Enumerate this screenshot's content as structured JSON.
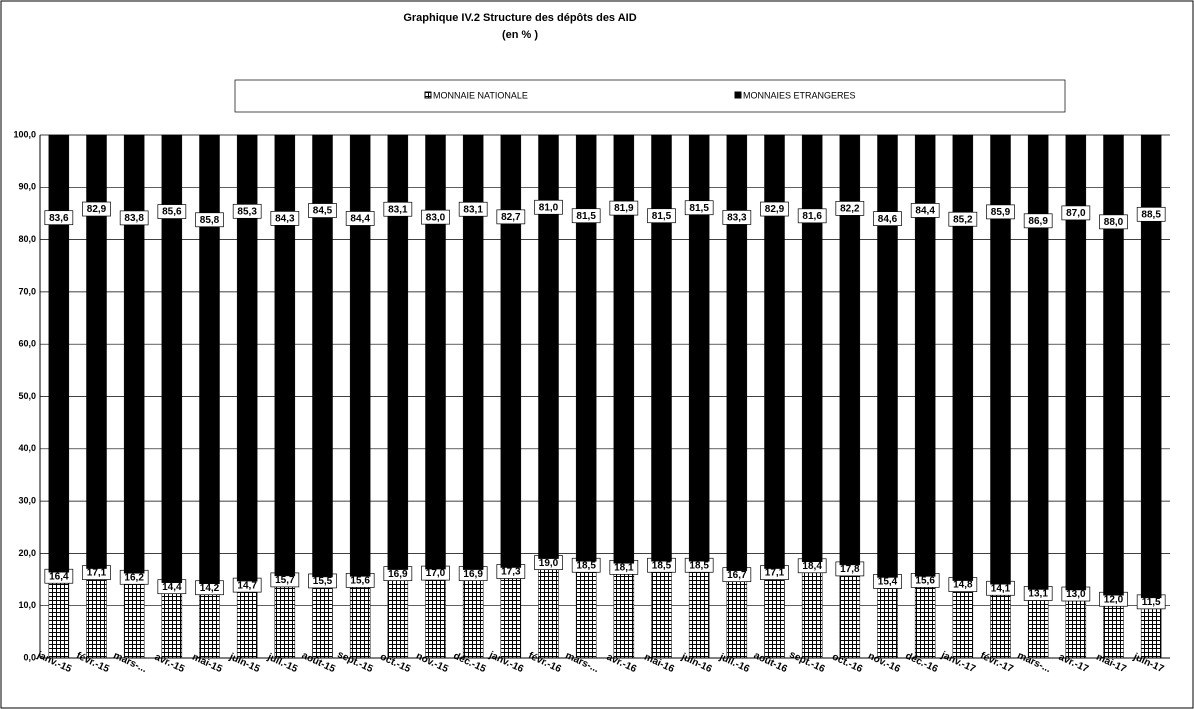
{
  "chart_data": {
    "type": "stacked_bar",
    "title": "Graphique IV.2  Structure des dépôts des AID",
    "subtitle": "(en % )",
    "categories": [
      "janv.-15",
      "févr.-15",
      "mars-...",
      "avr.-15",
      "mai-15",
      "juin-15",
      "juil.-15",
      "août-15",
      "sept.-15",
      "oct.-15",
      "nov.-15",
      "déc.-15",
      "janv.-16",
      "févr.-16",
      "mars-...",
      "avr.-16",
      "mai-16",
      "juin-16",
      "juil.-16",
      "août-16",
      "sept.-16",
      "oct.-16",
      "nov.-16",
      "déc.-16",
      "janv.-17",
      "févr.-17",
      "mars-...",
      "avr.-17",
      "mai-17",
      "juin-17"
    ],
    "series": [
      {
        "name": "MONNAIE NATIONALE",
        "color": "#ffffff",
        "values": [
          16.4,
          17.1,
          16.2,
          14.4,
          14.2,
          14.7,
          15.7,
          15.5,
          15.6,
          16.9,
          17.0,
          16.9,
          17.3,
          19.0,
          18.5,
          18.1,
          18.5,
          18.5,
          16.7,
          17.1,
          18.4,
          17.8,
          15.4,
          15.6,
          14.8,
          14.1,
          13.1,
          13.0,
          12.0,
          11.5
        ],
        "value_labels": [
          "16,4",
          "17,1",
          "16,2",
          "14,4",
          "14,2",
          "14,7",
          "15,7",
          "15,5",
          "15,6",
          "16,9",
          "17,0",
          "16,9",
          "17,3",
          "19,0",
          "18,5",
          "18,1",
          "18,5",
          "18,5",
          "16,7",
          "17,1",
          "18,4",
          "17,8",
          "15,4",
          "15,6",
          "14,8",
          "14,1",
          "13,1",
          "13,0",
          "12,0",
          "11,5"
        ]
      },
      {
        "name": "MONNAIES ETRANGERES",
        "color": "#000000",
        "values": [
          83.6,
          82.9,
          83.8,
          85.6,
          85.8,
          85.3,
          84.3,
          84.5,
          84.4,
          83.1,
          83.0,
          83.1,
          82.7,
          81.0,
          81.5,
          81.9,
          81.5,
          81.5,
          83.3,
          82.9,
          81.6,
          82.2,
          84.6,
          84.4,
          85.2,
          85.9,
          86.9,
          87.0,
          88.0,
          88.5
        ],
        "value_labels": [
          "83,6",
          "82,9",
          "83,8",
          "85,6",
          "85,8",
          "85,3",
          "84,3",
          "84,5",
          "84,4",
          "83,1",
          "83,0",
          "83,1",
          "82,7",
          "81,0",
          "81,5",
          "81,9",
          "81,5",
          "81,5",
          "83,3",
          "82,9",
          "81,6",
          "82,2",
          "84,6",
          "84,4",
          "85,2",
          "85,9",
          "86,9",
          "87,0",
          "88,0",
          "88,5"
        ]
      }
    ],
    "ylim": [
      0,
      100
    ],
    "yticks": [
      {
        "value": 0,
        "label": "0,0"
      },
      {
        "value": 10,
        "label": "10,0"
      },
      {
        "value": 20,
        "label": "20,0"
      },
      {
        "value": 30,
        "label": "30,0"
      },
      {
        "value": 40,
        "label": "40,0"
      },
      {
        "value": 50,
        "label": "50,0"
      },
      {
        "value": 60,
        "label": "60,0"
      },
      {
        "value": 70,
        "label": "70,0"
      },
      {
        "value": 80,
        "label": "80,0"
      },
      {
        "value": 90,
        "label": "90,0"
      },
      {
        "value": 100,
        "label": "100,0"
      }
    ],
    "grid": true
  }
}
